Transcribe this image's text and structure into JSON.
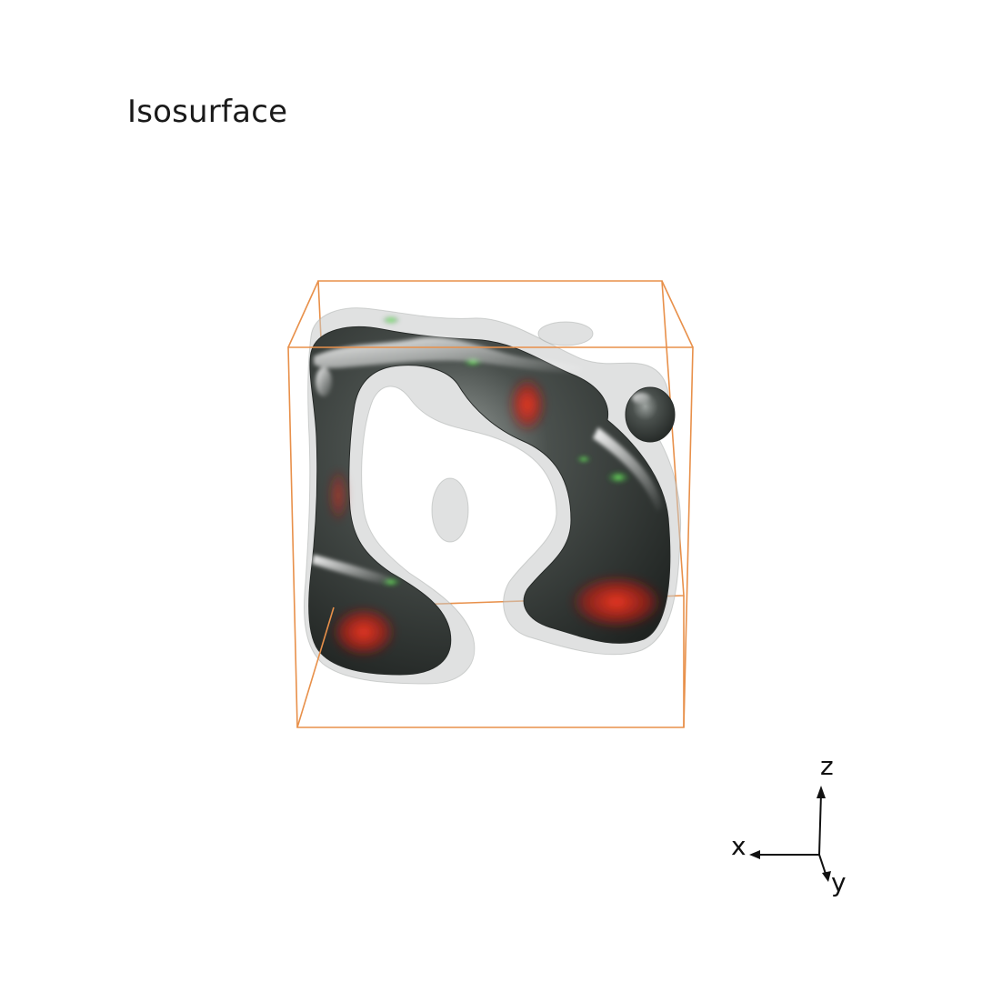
{
  "title": "Isosurface",
  "colors": {
    "bounding_box": "#e8904a",
    "surface_dark": "#2f3331",
    "surface_translucent": "#c9cccb",
    "highlight_red": "#e0241a",
    "highlight_green": "#39c04a",
    "axes": "#111111"
  },
  "orientation_axes": {
    "x_label": "x",
    "y_label": "y",
    "z_label": "z"
  }
}
